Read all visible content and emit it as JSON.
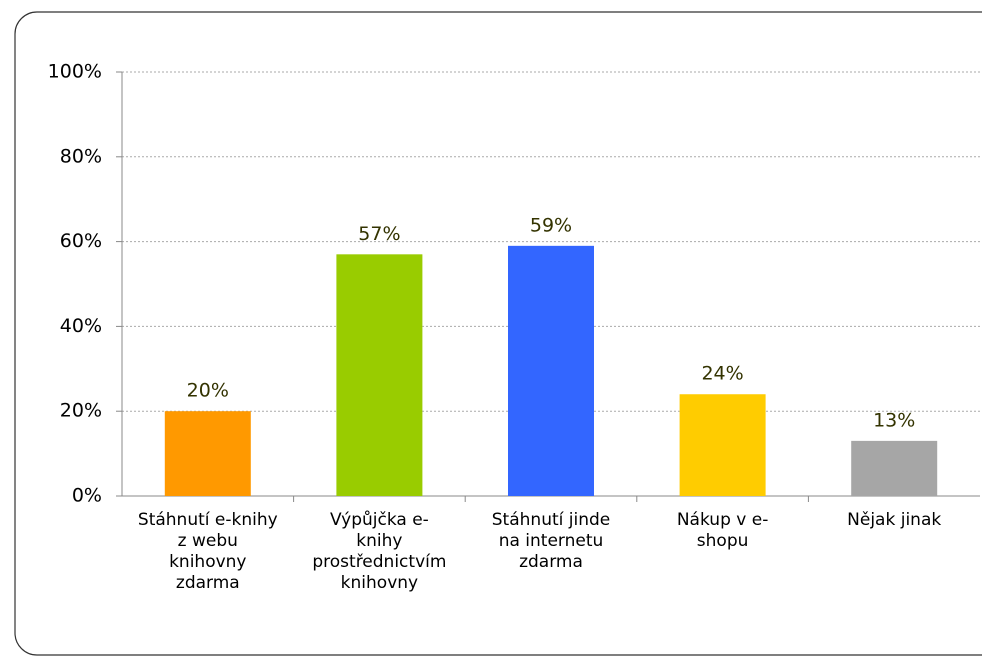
{
  "chart_data": {
    "type": "bar",
    "categories": [
      "Stáhnutí e-knihy z webu knihovny zdarma",
      "Výpůjčka e-knihy prostřednictvím knihovny",
      "Stáhnutí jinde na internetu zdarma",
      "Nákup v e-shopu",
      "Nějak jinak"
    ],
    "values": [
      20,
      57,
      59,
      24,
      13
    ],
    "value_labels": [
      "20%",
      "57%",
      "59%",
      "24%",
      "13%"
    ],
    "colors": [
      "#ff9900",
      "#99cc00",
      "#3366ff",
      "#ffcc00",
      "#a6a6a6"
    ],
    "ylim": [
      0,
      100
    ],
    "yticks": [
      {
        "value": 0,
        "label": "0%"
      },
      {
        "value": 20,
        "label": "20%"
      },
      {
        "value": 40,
        "label": "40%"
      },
      {
        "value": 60,
        "label": "60%"
      },
      {
        "value": 80,
        "label": "80%"
      },
      {
        "value": 100,
        "label": "100%"
      }
    ],
    "grid": true
  }
}
